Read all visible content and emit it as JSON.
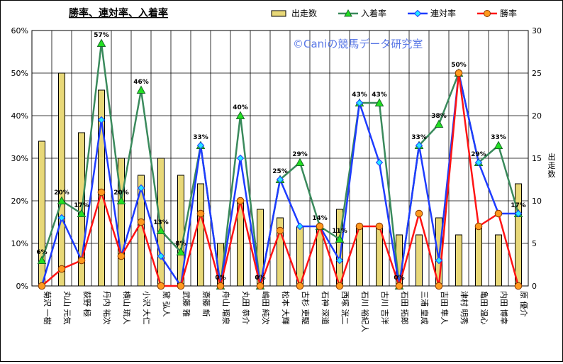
{
  "chart_data": {
    "type": "bar-line-combo",
    "title": "勝率、連対率、入着率",
    "watermark": "©Caniの競馬データ研究室",
    "y_left": {
      "ylim": [
        0,
        60
      ],
      "ticks": [
        "0%",
        "10%",
        "20%",
        "30%",
        "40%",
        "50%",
        "60%"
      ]
    },
    "y_right": {
      "label": "出走数",
      "ylim": [
        0,
        30
      ],
      "ticks": [
        "0",
        "5",
        "10",
        "15",
        "20",
        "25",
        "30"
      ]
    },
    "grid": true,
    "legend_position": "top",
    "categories": [
      "菊沢 一樹",
      "丸山 元気",
      "荻野 極",
      "丹内 祐次",
      "横山 琉人",
      "小沢 大仁",
      "黛 弘人",
      "武藤 雅",
      "斎藤 新",
      "舟山 瑠泉",
      "丸田 恭介",
      "嶋田 純次",
      "松本 大輝",
      "古杉 吏駆",
      "石神 深道",
      "西塚 洸二",
      "石川 裕紀人",
      "古川 吉洋",
      "石田 拓郎",
      "三浦 皇成",
      "吉田 隼人",
      "津村 明秀",
      "亀田 温心",
      "内田 博幸",
      "原 優介"
    ],
    "series": [
      {
        "name": "出走数",
        "type": "bar",
        "axis": "right",
        "color": "#e8d878",
        "values": [
          17,
          25,
          18,
          23,
          15,
          13,
          15,
          13,
          12,
          5,
          10,
          9,
          8,
          7,
          7,
          9,
          7,
          7,
          6,
          6,
          8,
          6,
          7,
          6,
          12
        ]
      },
      {
        "name": "入着率",
        "type": "line",
        "axis": "left",
        "color": "#3a8a5c",
        "values": [
          6,
          20,
          17,
          57,
          20,
          46,
          13,
          8,
          33,
          0,
          40,
          0,
          25,
          29,
          14,
          11,
          43,
          43,
          0,
          33,
          38,
          50,
          29,
          33,
          17
        ]
      },
      {
        "name": "連対率",
        "type": "line",
        "axis": "left",
        "color": "#1e3cff",
        "values": [
          0,
          16,
          6,
          39,
          7,
          23,
          7,
          0,
          33,
          0,
          30,
          0,
          25,
          14,
          14,
          6,
          43,
          29,
          0,
          33,
          6,
          50,
          29,
          17,
          17
        ]
      },
      {
        "name": "勝率",
        "type": "line",
        "axis": "left",
        "color": "#ff1414",
        "values": [
          0,
          4,
          6,
          22,
          7,
          15,
          0,
          0,
          17,
          0,
          20,
          0,
          13,
          0,
          14,
          0,
          14,
          14,
          0,
          17,
          0,
          50,
          14,
          17,
          0
        ]
      }
    ],
    "data_labels": {
      "series": "入着率",
      "values": [
        "6%",
        "20%",
        "17%",
        "57%",
        "20%",
        "46%",
        "13%",
        "8%",
        "33%",
        "0%",
        "40%",
        "0%",
        "25%",
        "29%",
        "14%",
        "11%",
        "43%",
        "43%",
        "0%",
        "33%",
        "38%",
        "50%",
        "29%",
        "33%",
        "17%"
      ]
    }
  }
}
